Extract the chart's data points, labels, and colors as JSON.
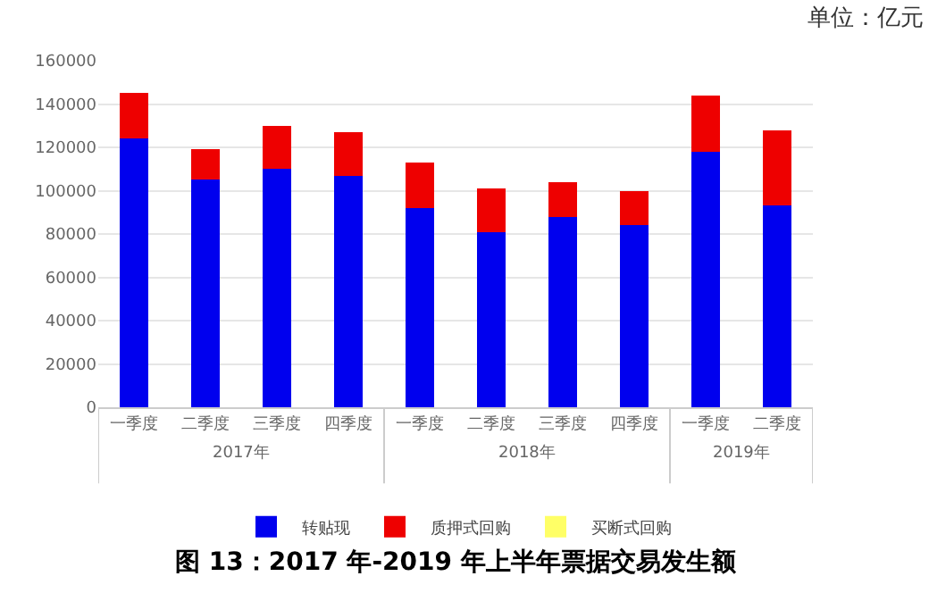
{
  "chart_data": {
    "type": "bar",
    "title": "图 13：2017 年-2019 年上半年票据交易发生额",
    "ylabel": "单位：亿元",
    "categories": [
      "一季度",
      "二季度",
      "三季度",
      "四季度",
      "一季度",
      "二季度",
      "三季度",
      "四季度",
      "一季度",
      "二季度"
    ],
    "series": [
      {
        "name": "转贴现",
        "color": "#0000ee",
        "values": [
          124000,
          105000,
          110000,
          107000,
          92000,
          81000,
          88000,
          84000,
          118000,
          93000
        ]
      },
      {
        "name": "质押式回购",
        "color": "#ee0000",
        "values": [
          21000,
          14000,
          20000,
          20000,
          21000,
          20000,
          16000,
          16000,
          26000,
          35000
        ]
      },
      {
        "name": "买断式回购",
        "color": "#ffff66",
        "values": [
          0,
          0,
          0,
          0,
          0,
          0,
          0,
          0,
          0,
          0
        ]
      }
    ],
    "stacked": true,
    "ylim": [
      0,
      160000
    ],
    "yticks": [
      0,
      20000,
      40000,
      60000,
      80000,
      100000,
      120000,
      140000,
      160000
    ],
    "grid": "y",
    "legend": "bottom",
    "annotations": [
      "2017年",
      "2018年",
      "2019年"
    ]
  }
}
